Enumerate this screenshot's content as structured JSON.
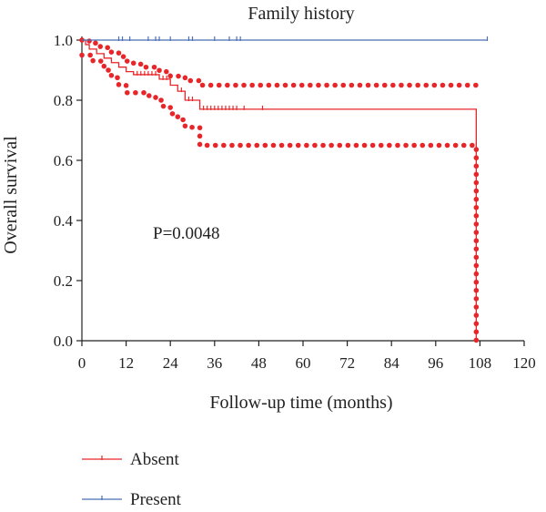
{
  "chart_data": {
    "type": "line",
    "chart_kind": "kaplan-meier survival curve",
    "title": "Family history",
    "xlabel": "Follow-up time (months)",
    "ylabel": "Overall survival",
    "xlim": [
      0,
      120
    ],
    "ylim": [
      0,
      1.0
    ],
    "x_ticks": [
      "0",
      "12",
      "24",
      "36",
      "48",
      "60",
      "72",
      "84",
      "96",
      "108",
      "120"
    ],
    "y_ticks": [
      "0.0",
      "0.2",
      "0.4",
      "0.6",
      "0.8",
      "1.0"
    ],
    "grid": false,
    "legend_position": "bottom-left",
    "annotation": "P=0.0048",
    "colors": {
      "absent": "#e8262a",
      "present": "#4a6fb5",
      "axis": "#222222"
    },
    "series": [
      {
        "name": "Absent",
        "color_key": "absent",
        "steps": [
          [
            0,
            1.0
          ],
          [
            1,
            0.985
          ],
          [
            2,
            0.97
          ],
          [
            4,
            0.955
          ],
          [
            6,
            0.94
          ],
          [
            8,
            0.925
          ],
          [
            10,
            0.91
          ],
          [
            12,
            0.895
          ],
          [
            14,
            0.885
          ],
          [
            21,
            0.87
          ],
          [
            24,
            0.85
          ],
          [
            26,
            0.83
          ],
          [
            28,
            0.8
          ],
          [
            32,
            0.77
          ],
          [
            107,
            0.77
          ],
          [
            107,
            0.0
          ]
        ],
        "censor_x": [
          15,
          16,
          17,
          18,
          19,
          20,
          22,
          23,
          27,
          29,
          30,
          33,
          34,
          35,
          36,
          37,
          38,
          39,
          40,
          41,
          42,
          44,
          49
        ]
      },
      {
        "name": "Present",
        "color_key": "present",
        "steps": [
          [
            0,
            1.0
          ],
          [
            110,
            1.0
          ]
        ],
        "censor_x": [
          10,
          11,
          13,
          18,
          20,
          21,
          24,
          29,
          30,
          36,
          40,
          42,
          43,
          110
        ]
      }
    ],
    "confidence_band": {
      "color_key": "absent",
      "upper": [
        [
          0,
          1.0
        ],
        [
          2,
          0.99
        ],
        [
          5,
          0.975
        ],
        [
          8,
          0.96
        ],
        [
          10,
          0.945
        ],
        [
          12,
          0.93
        ],
        [
          14,
          0.92
        ],
        [
          17,
          0.91
        ],
        [
          21,
          0.895
        ],
        [
          24,
          0.88
        ],
        [
          28,
          0.865
        ],
        [
          32,
          0.85
        ],
        [
          107,
          0.85
        ],
        [
          107,
          0.83
        ]
      ],
      "lower": [
        [
          0,
          0.95
        ],
        [
          3,
          0.93
        ],
        [
          6,
          0.9
        ],
        [
          8,
          0.875
        ],
        [
          10,
          0.85
        ],
        [
          12,
          0.825
        ],
        [
          17,
          0.815
        ],
        [
          20,
          0.8
        ],
        [
          22,
          0.78
        ],
        [
          24,
          0.755
        ],
        [
          26,
          0.735
        ],
        [
          28,
          0.71
        ],
        [
          32,
          0.65
        ],
        [
          107,
          0.65
        ],
        [
          107,
          0.0
        ]
      ]
    }
  }
}
